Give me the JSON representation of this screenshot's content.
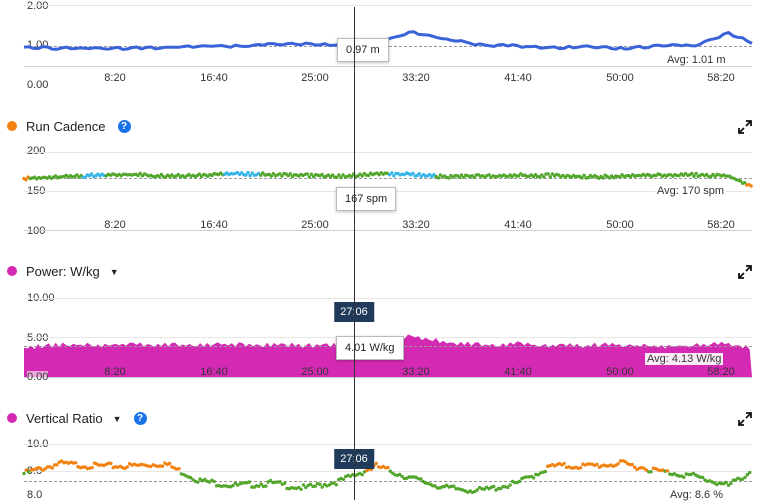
{
  "colors": {
    "stride": "#3a63d9",
    "cadence_green": "#52a62b",
    "cadence_blue": "#36b5e8",
    "cadence_orange": "#f2820f",
    "power": "#d42ab3",
    "vratio_orange": "#f2820f",
    "vratio_green": "#52a62b",
    "help": "#1a73e8",
    "time_tip": "#1f3a5a"
  },
  "x_ticks": [
    "8:20",
    "16:40",
    "25:00",
    "33:20",
    "41:40",
    "50:00",
    "58:20"
  ],
  "stride_chart": {
    "y_ticks": [
      "2.00",
      "1.00",
      "0.00"
    ],
    "tooltip": "0.97 m",
    "avg_label": "Avg: 1.01 m"
  },
  "cadence_chart": {
    "title": "Run Cadence",
    "help": "?",
    "dot_icon": "orange-dot-icon",
    "y_ticks": [
      "200",
      "150",
      "100"
    ],
    "tooltip": "167 spm",
    "avg_label": "Avg: 170 spm"
  },
  "power_chart": {
    "title": "Power: W/kg",
    "caret": "▼",
    "y_ticks": [
      "10.00",
      "5.00",
      "0.00"
    ],
    "time_tip": "27:06",
    "tooltip": "4.01 W/kg",
    "avg_label": "Avg: 4.13 W/kg"
  },
  "vratio_chart": {
    "title": "Vertical Ratio",
    "caret": "▼",
    "help": "?",
    "y_ticks": [
      "10.0",
      "9.0",
      "8.0"
    ],
    "time_tip": "27:06",
    "avg_label": "Avg: 8.6 %"
  },
  "chart_data": [
    {
      "type": "line",
      "ylim": [
        0,
        2
      ],
      "y_ticks": [
        0,
        1,
        2
      ],
      "avg": 1.01,
      "cursor_time": "27:06",
      "cursor_value": 0.97,
      "x_ticks": [
        "8:20",
        "16:40",
        "25:00",
        "33:20",
        "41:40",
        "50:00",
        "58:20"
      ],
      "x_minutes": [
        0,
        3,
        6,
        9,
        12,
        15,
        18,
        21,
        24,
        27,
        30,
        33,
        36,
        39,
        42,
        45,
        48,
        51,
        54,
        57,
        60,
        62
      ],
      "series": [
        {
          "values": [
            0.96,
            0.93,
            0.94,
            0.93,
            0.95,
            0.99,
            0.98,
            1.02,
            1.04,
            1.0,
            1.06,
            1.33,
            1.15,
            1.01,
            0.99,
            0.94,
            0.97,
            0.92,
            1.0,
            0.99,
            1.3,
            1.08
          ]
        }
      ]
    },
    {
      "type": "scatter",
      "ylim": [
        100,
        200
      ],
      "y_ticks": [
        100,
        150,
        200
      ],
      "avg": 170,
      "cursor_time": "27:06",
      "cursor_value": 167,
      "x_ticks": [
        "8:20",
        "16:40",
        "25:00",
        "33:20",
        "41:40",
        "50:00",
        "58:20"
      ],
      "x_minutes": [
        0,
        3,
        6,
        9,
        12,
        15,
        18,
        21,
        24,
        27,
        30,
        33,
        36,
        39,
        42,
        45,
        48,
        51,
        54,
        57,
        60,
        62
      ],
      "series": [
        {
          "values": [
            166,
            168,
            170,
            171,
            169,
            170,
            172,
            171,
            170,
            169,
            172,
            171,
            168,
            169,
            170,
            170,
            168,
            169,
            170,
            171,
            169,
            155
          ]
        }
      ]
    },
    {
      "type": "area",
      "ylim": [
        0,
        10
      ],
      "y_ticks": [
        0,
        5,
        10
      ],
      "avg": 4.13,
      "cursor_time": "27:06",
      "cursor_value": 4.01,
      "x_ticks": [
        "8:20",
        "16:40",
        "25:00",
        "33:20",
        "41:40",
        "50:00",
        "58:20"
      ],
      "x_minutes": [
        0,
        3,
        6,
        9,
        12,
        15,
        18,
        21,
        24,
        27,
        30,
        33,
        36,
        39,
        42,
        45,
        48,
        51,
        54,
        57,
        60,
        62
      ],
      "series": [
        {
          "values": [
            3.7,
            4.1,
            4.0,
            4.2,
            4.1,
            4.0,
            4.2,
            4.1,
            4.0,
            4.0,
            4.3,
            5.2,
            4.4,
            4.1,
            4.2,
            3.9,
            4.0,
            4.1,
            3.8,
            4.0,
            4.2,
            3.6
          ]
        }
      ]
    },
    {
      "type": "scatter",
      "ylim": [
        7.8,
        10
      ],
      "y_ticks": [
        8,
        9,
        10
      ],
      "avg": 8.6,
      "cursor_time": "27:06",
      "x_ticks": [
        "8:20",
        "16:40",
        "25:00",
        "33:20",
        "41:40",
        "50:00",
        "58:20"
      ],
      "x_minutes": [
        0,
        3,
        6,
        9,
        12,
        15,
        18,
        21,
        24,
        27,
        30,
        33,
        36,
        39,
        42,
        45,
        48,
        51,
        54,
        57,
        60,
        62
      ],
      "series": [
        {
          "values": [
            8.8,
            9.2,
            9.1,
            9.1,
            9.2,
            8.5,
            8.3,
            8.4,
            8.2,
            8.5,
            9.1,
            8.6,
            8.2,
            8.1,
            8.4,
            9.1,
            9.1,
            9.2,
            8.9,
            8.7,
            8.3,
            8.9
          ]
        }
      ]
    }
  ]
}
